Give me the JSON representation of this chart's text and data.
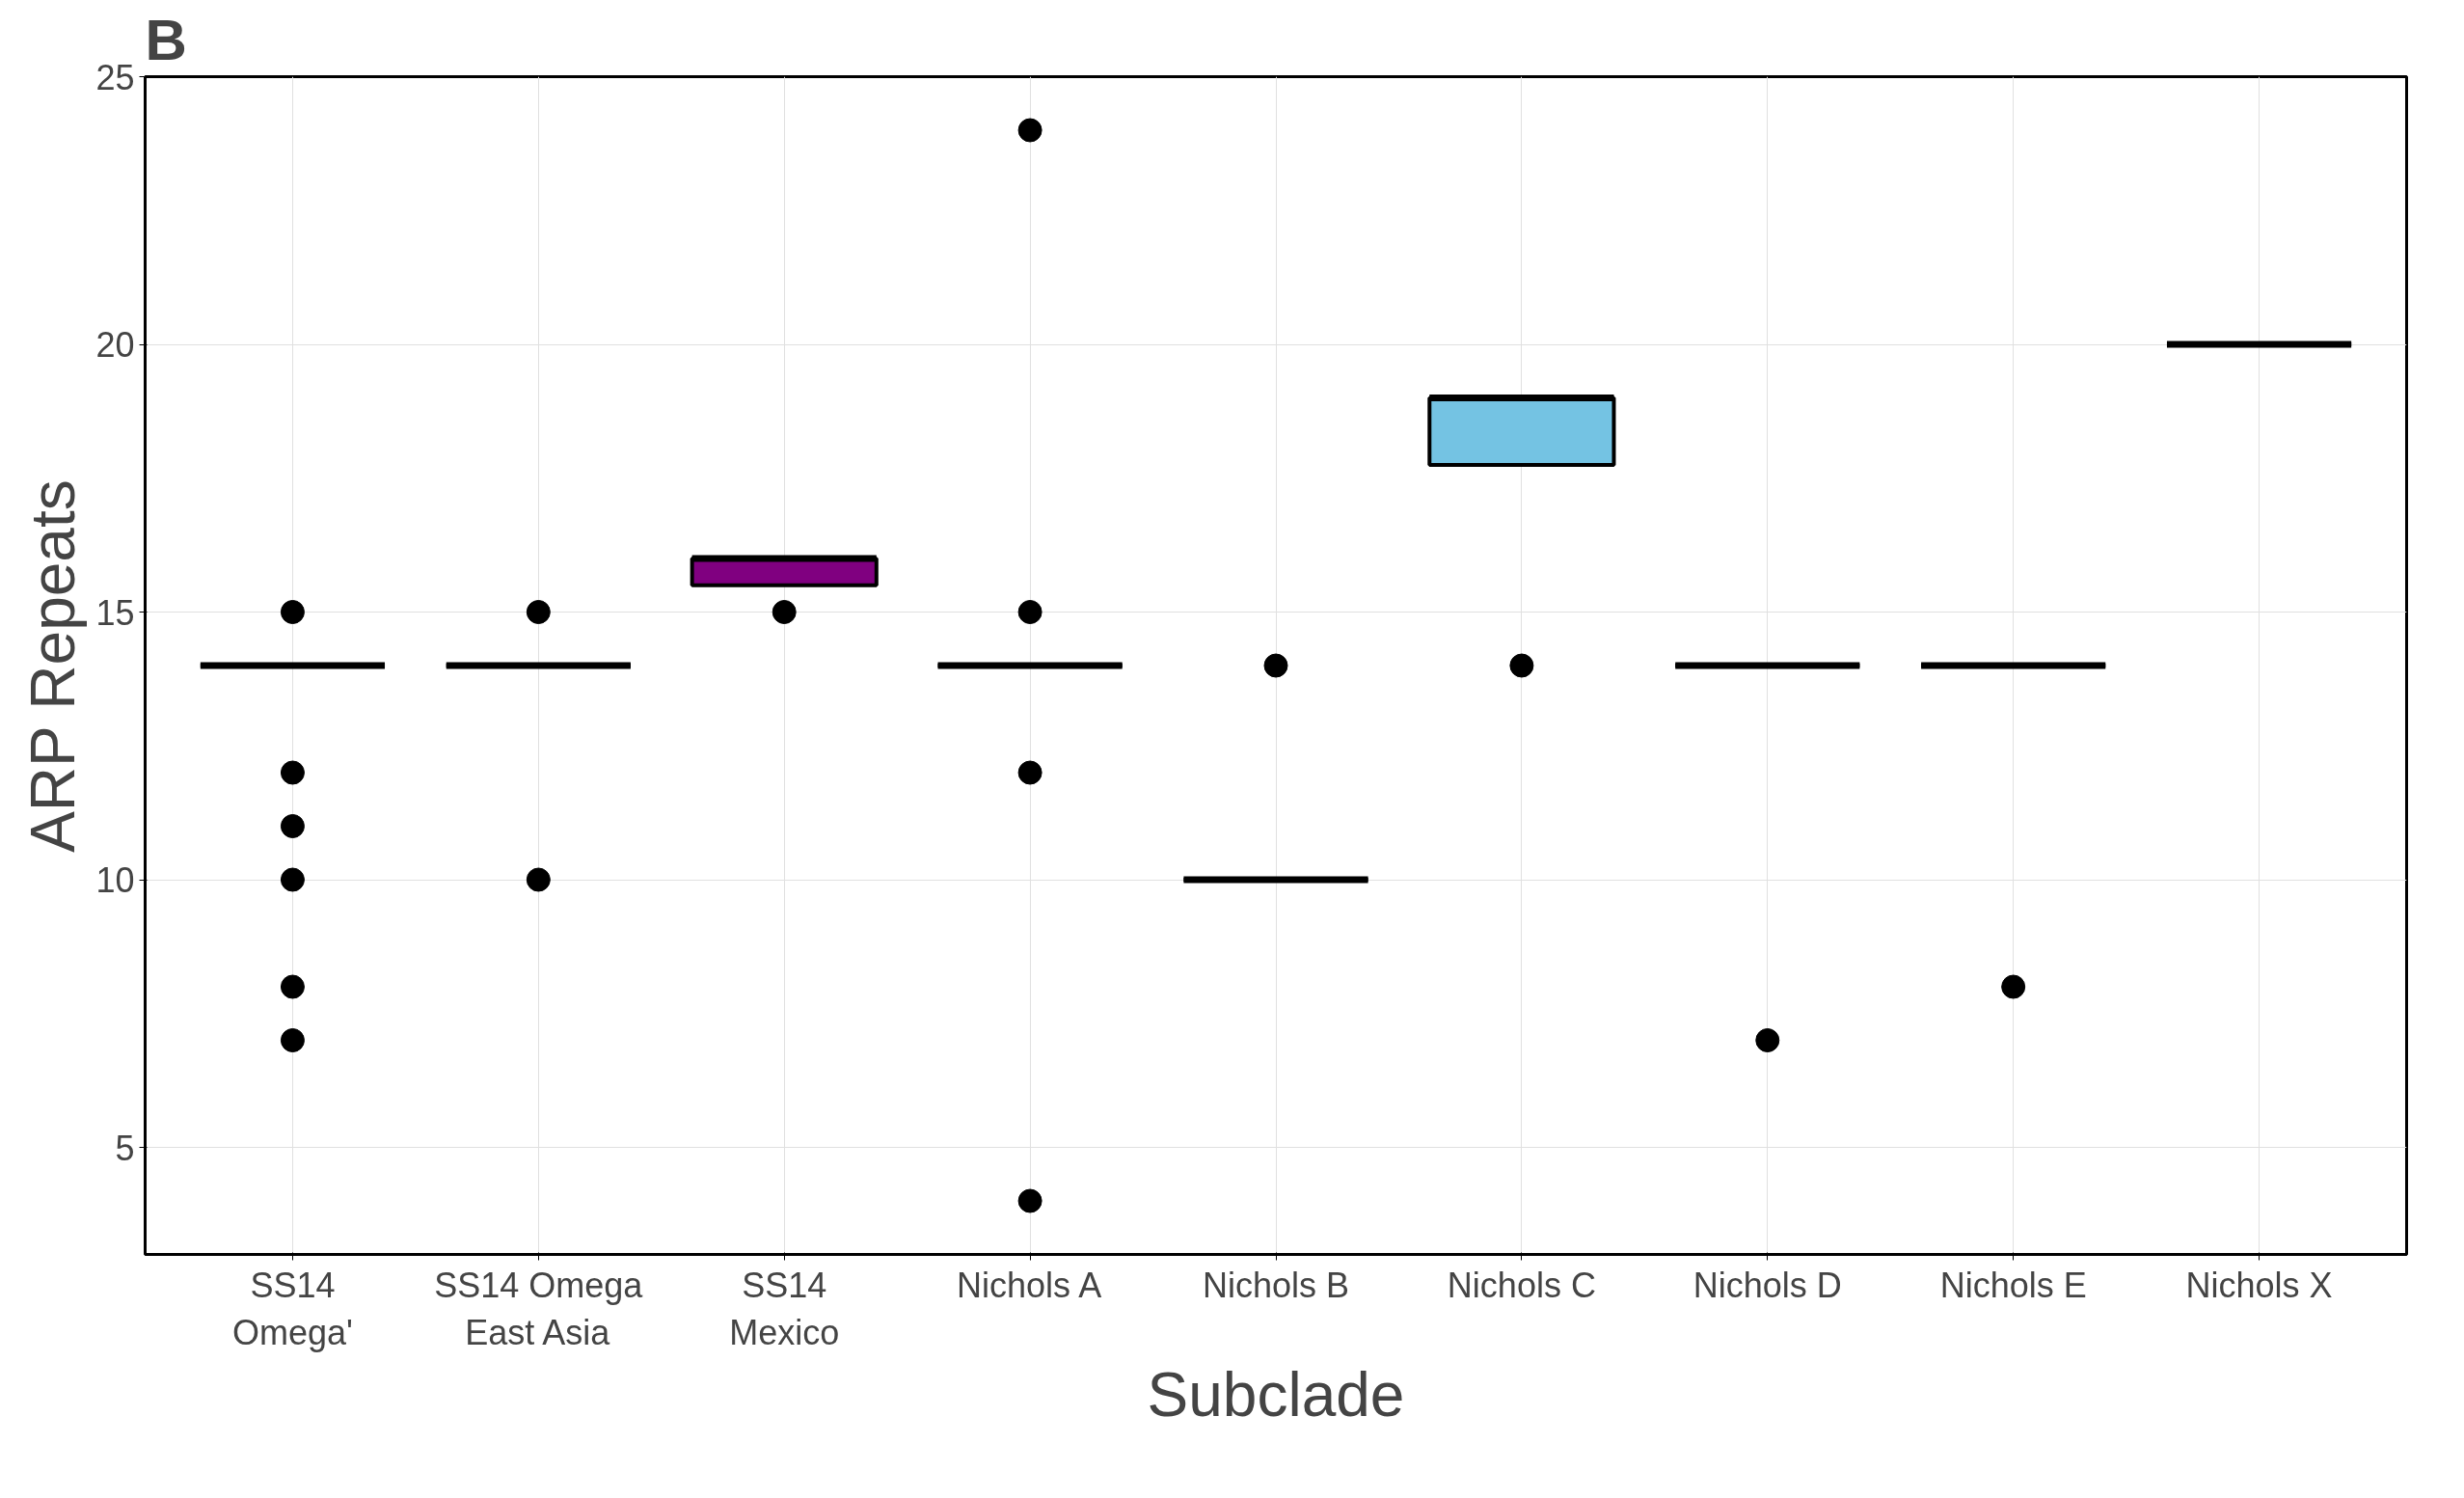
{
  "chart_data": {
    "type": "box",
    "title": "B",
    "xlabel": "Subclade",
    "ylabel": "ARP Repeats",
    "categories": [
      "SS14\nOmega'",
      "SS14 Omega\nEast Asia",
      "SS14\nMexico",
      "Nichols A",
      "Nichols B",
      "Nichols C",
      "Nichols D",
      "Nichols E",
      "Nichols X"
    ],
    "colors": [
      "#000000",
      "#000000",
      "#800080",
      "#000000",
      "#000000",
      "#74c3e3",
      "#000000",
      "#000000",
      "#000000"
    ],
    "boxes": [
      {
        "low": 14,
        "q1": 14,
        "median": 14,
        "q3": 14,
        "high": 14,
        "outliers": [
          15,
          12,
          11,
          10,
          8,
          7
        ]
      },
      {
        "low": 14,
        "q1": 14,
        "median": 14,
        "q3": 14,
        "high": 14,
        "outliers": [
          15,
          10
        ]
      },
      {
        "low": 15.5,
        "q1": 15.5,
        "median": 16,
        "q3": 16,
        "high": 16,
        "outliers": [
          15
        ]
      },
      {
        "low": 14,
        "q1": 14,
        "median": 14,
        "q3": 14,
        "high": 14,
        "outliers": [
          24,
          15,
          12,
          4
        ]
      },
      {
        "low": 10,
        "q1": 10,
        "median": 10,
        "q3": 10,
        "high": 10,
        "outliers": [
          14
        ]
      },
      {
        "low": 17.75,
        "q1": 17.75,
        "median": 19,
        "q3": 19,
        "high": 19,
        "outliers": [
          14
        ]
      },
      {
        "low": 14,
        "q1": 14,
        "median": 14,
        "q3": 14,
        "high": 14,
        "outliers": [
          7
        ]
      },
      {
        "low": 14,
        "q1": 14,
        "median": 14,
        "q3": 14,
        "high": 14,
        "outliers": [
          8
        ]
      },
      {
        "low": 20,
        "q1": 20,
        "median": 20,
        "q3": 20,
        "high": 20
      }
    ],
    "ylim": [
      3,
      25
    ],
    "yticks": [
      5,
      10,
      15,
      20,
      25
    ],
    "grid": true
  }
}
